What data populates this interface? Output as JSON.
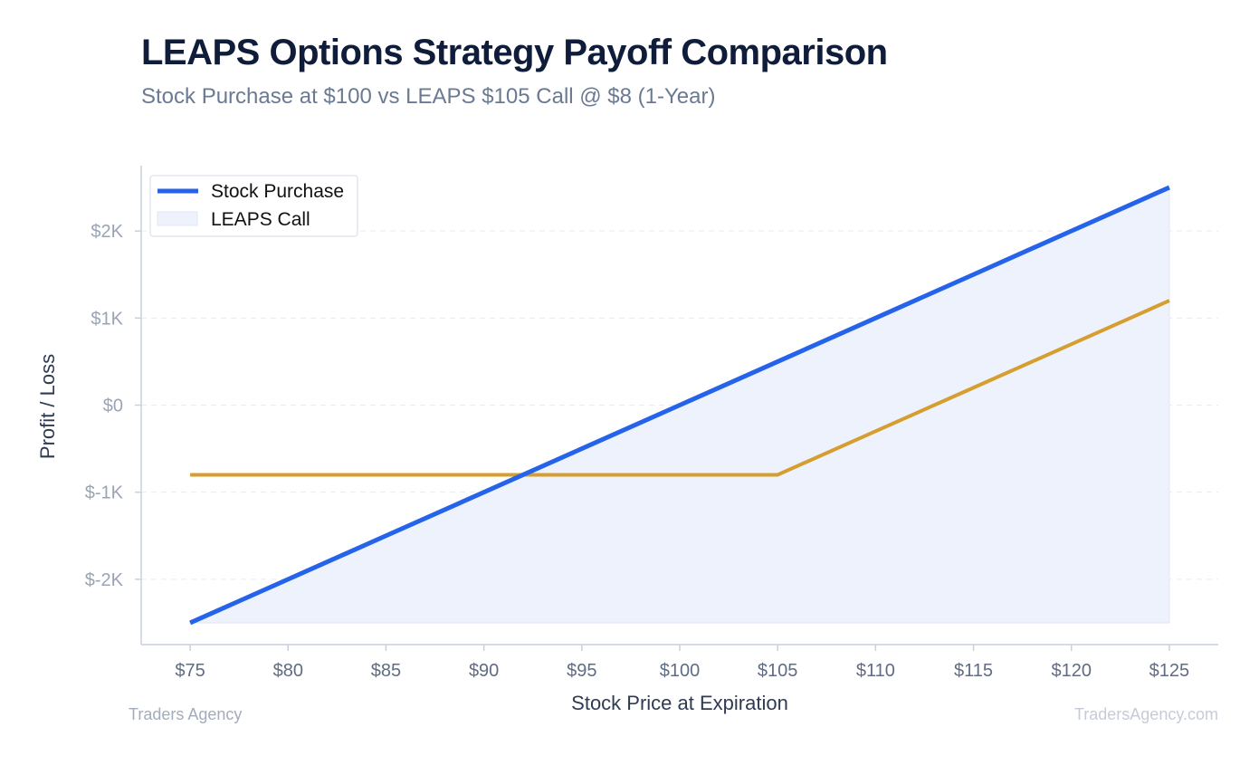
{
  "title": "LEAPS Options Strategy Payoff Comparison",
  "subtitle": "Stock Purchase at $100 vs LEAPS $105 Call @ $8 (1-Year)",
  "footer": {
    "left": "Traders Agency",
    "right": "TradersAgency.com"
  },
  "chart_data": {
    "type": "line",
    "xlabel": "Stock Price at Expiration",
    "ylabel": "Profit / Loss",
    "x": [
      75,
      80,
      85,
      90,
      95,
      100,
      105,
      110,
      115,
      120,
      125
    ],
    "x_tick_labels": [
      "$75",
      "$80",
      "$85",
      "$90",
      "$95",
      "$100",
      "$105",
      "$110",
      "$115",
      "$120",
      "$125"
    ],
    "y_ticks": [
      2000,
      1000,
      0,
      -1000,
      -2000
    ],
    "y_tick_labels": [
      "$2K",
      "$1K",
      "$0",
      "$-1K",
      "$-2K"
    ],
    "xlim": [
      72.5,
      127.5
    ],
    "ylim": [
      -2750,
      2750
    ],
    "grid": "horizontal-dashed",
    "legend_position": "top-left",
    "series": [
      {
        "name": "Stock Purchase",
        "color": "#2563eb",
        "style": "line",
        "values": [
          -2500,
          -2000,
          -1500,
          -1000,
          -500,
          0,
          500,
          1000,
          1500,
          2000,
          2500
        ]
      },
      {
        "name": "LEAPS Call",
        "color": "#d69e2e",
        "style": "line",
        "fill_color": "#eef2fc",
        "values": [
          -800,
          -800,
          -800,
          -800,
          -800,
          -800,
          -800,
          -300,
          200,
          700,
          1200
        ]
      }
    ]
  }
}
